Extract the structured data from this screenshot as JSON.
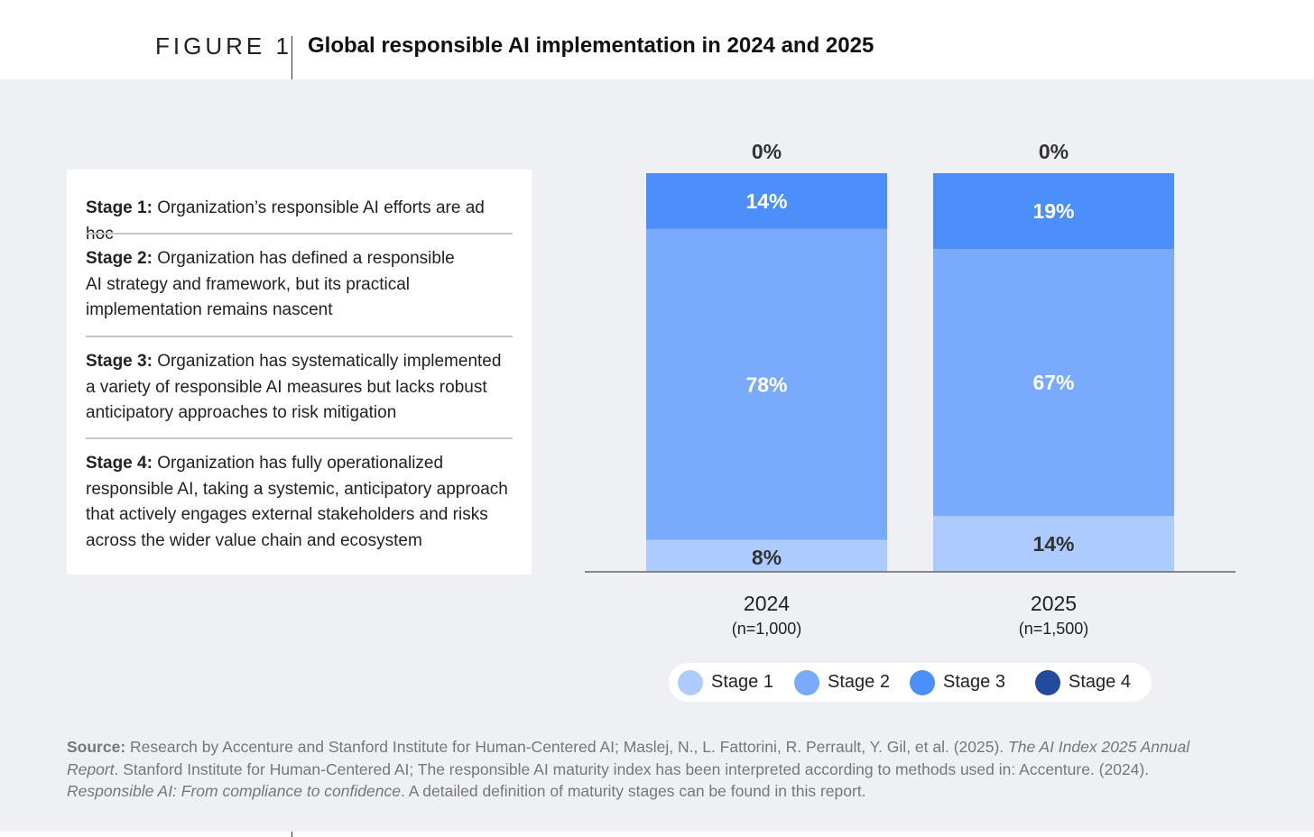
{
  "figure": {
    "label": "FIGURE 1",
    "title": "Global responsible AI implementation in 2024 and 2025"
  },
  "stages": [
    {
      "label": "Stage 1:",
      "text": " Organization’s responsible AI efforts are ad hoc"
    },
    {
      "label": "Stage 2:",
      "text": " Organization has defined a responsible AI strategy and framework, but its practical implementation remains nascent"
    },
    {
      "label": "Stage 3:",
      "text": " Organization has systematically implemented a variety of responsible AI measures but lacks robust anticipatory approaches to risk mitigation"
    },
    {
      "label": "Stage 4:",
      "text": " Organization has fully operationalized responsible AI, taking a systemic, anticipatory approach that actively engages external stakeholders and risks across the wider value chain and ecosystem"
    }
  ],
  "chart_data": {
    "type": "bar",
    "stacked": true,
    "categories": [
      "2024",
      "2025"
    ],
    "category_sublabels": [
      "(n=1,000)",
      "(n=1,500)"
    ],
    "series": [
      {
        "name": "Stage 1",
        "values": [
          8,
          14
        ],
        "color": "#aecbff",
        "label_color": "#333333"
      },
      {
        "name": "Stage 2",
        "values": [
          78,
          67
        ],
        "color": "#7aaafc",
        "label_color": "#ffffff"
      },
      {
        "name": "Stage 3",
        "values": [
          14,
          19
        ],
        "color": "#4d8ffa",
        "label_color": "#ffffff"
      },
      {
        "name": "Stage 4",
        "values": [
          0,
          0
        ],
        "color": "#234a9c",
        "label_color": "#333333"
      }
    ],
    "data_labels": [
      [
        "8%",
        "78%",
        "14%",
        "0%"
      ],
      [
        "14%",
        "67%",
        "19%",
        "0%"
      ]
    ],
    "ylim": [
      0,
      100
    ],
    "xlabel": "",
    "ylabel": "",
    "grid": false,
    "legend": "bottom"
  },
  "source": {
    "label": "Source:",
    "text1": " Research by Accenture and Stanford Institute for Human-Centered AI; Maslej, N., L. Fattorini, R. Perrault, Y. Gil, et al. (2025). ",
    "italic1": "The AI Index 2025 Annual Report",
    "text2": ". Stanford Institute for Human-Centered AI; The responsible AI maturity index has been interpreted according to methods used in: Accenture. (2024). ",
    "italic2": "Responsible AI: From compliance to confidence",
    "text3": ". A detailed definition of maturity stages can be found in this report."
  }
}
